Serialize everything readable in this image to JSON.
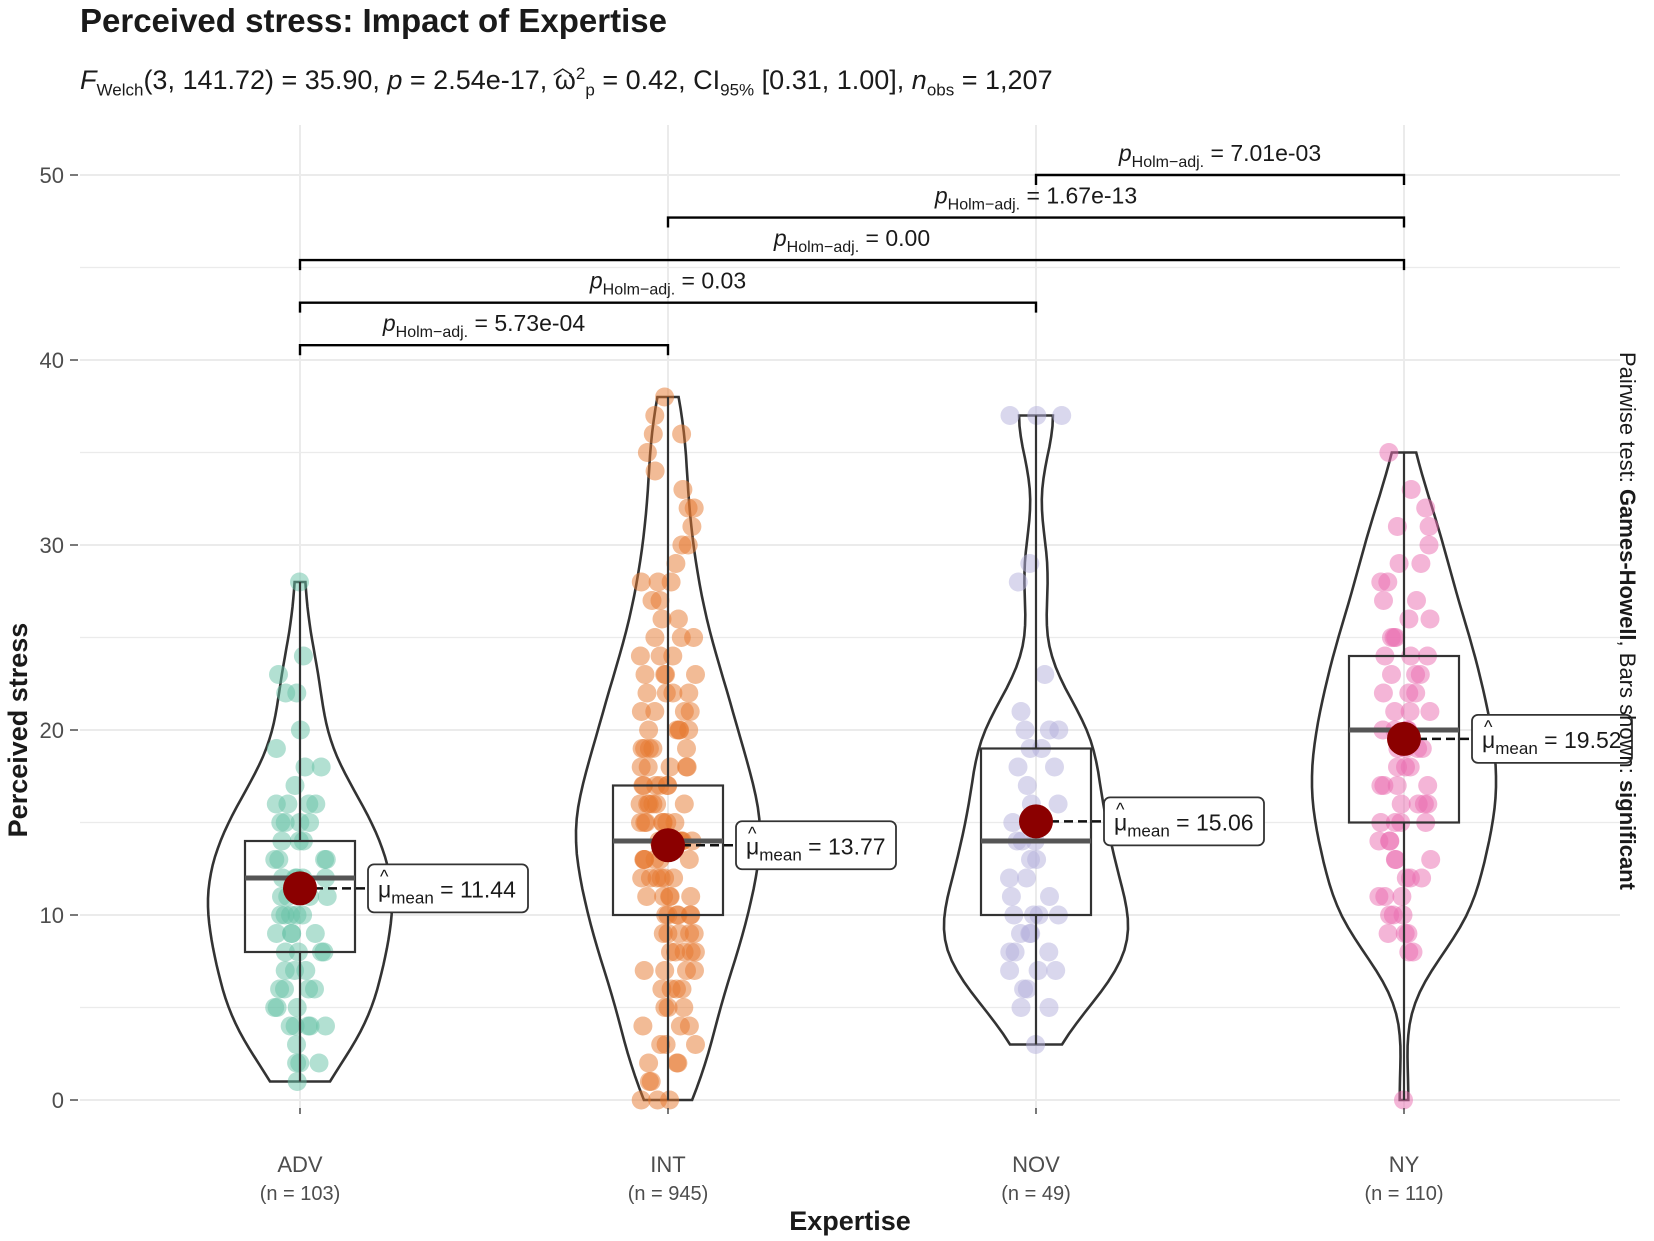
{
  "title": "Perceived stress: Impact of Expertise",
  "subtitle": {
    "stat_name": "F",
    "stat_sub": "Welch",
    "df": "(3, 141.72) = 35.90, ",
    "p_label": "p",
    "p_value": " = 2.54e-17, ",
    "effect_symbol": "ω",
    "effect_sup": "2",
    "effect_sub": "p",
    "effect_value": " = 0.42, CI",
    "ci_sub": "95%",
    "ci_value": " [0.31, 1.00], ",
    "n_label": "n",
    "n_sub": "obs",
    "n_value": " = 1,207"
  },
  "right_caption": {
    "prefix": "Pairwise test: ",
    "test": "Games-Howell",
    "middle": ", Bars shown: ",
    "shown": "significant"
  },
  "colors": {
    "ADV": "#66c2a5",
    "INT": "#e6772e",
    "NOV": "#b3b0dc",
    "NY": "#ea6bb0",
    "mean": "#8b0000",
    "grid": "#ebebeb",
    "outline": "#333333"
  },
  "chart_data": {
    "type": "violin-box-jitter",
    "xlabel": "Expertise",
    "ylabel": "Perceived stress",
    "ylim": [
      0,
      52
    ],
    "yticks": [
      0,
      10,
      20,
      30,
      40,
      50
    ],
    "groups": [
      {
        "name": "ADV",
        "n_label": "(n = 103)",
        "min": 1,
        "q1": 8,
        "median": 12,
        "q3": 14,
        "max": 28,
        "mean": 11.44,
        "mean_label": "= 11.44",
        "points": [
          28,
          24,
          23,
          22,
          22,
          20,
          19,
          18,
          18,
          17,
          16,
          16,
          16,
          16,
          15,
          15,
          15,
          15,
          14,
          14,
          14,
          13,
          13,
          13,
          13,
          12,
          12,
          12,
          12,
          12,
          11,
          11,
          11,
          11,
          10,
          10,
          10,
          10,
          10,
          9,
          9,
          9,
          9,
          8,
          8,
          8,
          8,
          7,
          7,
          7,
          6,
          6,
          6,
          6,
          5,
          5,
          5,
          4,
          4,
          4,
          4,
          4,
          3,
          2,
          2,
          2,
          1
        ]
      },
      {
        "name": "INT",
        "n_label": "(n = 945)",
        "min": 0,
        "q1": 10,
        "median": 14,
        "q3": 17,
        "max": 38,
        "mean": 13.77,
        "mean_label": "= 13.77",
        "points": [
          38,
          37,
          36,
          36,
          35,
          34,
          33,
          32,
          32,
          31,
          30,
          30,
          29,
          28,
          28,
          28,
          27,
          27,
          26,
          26,
          25,
          25,
          25,
          24,
          24,
          24,
          23,
          23,
          23,
          23,
          22,
          22,
          22,
          22,
          21,
          21,
          21,
          21,
          20,
          20,
          20,
          20,
          20,
          19,
          19,
          19,
          19,
          19,
          18,
          18,
          18,
          18,
          18,
          17,
          17,
          17,
          17,
          17,
          17,
          16,
          16,
          16,
          16,
          16,
          16,
          15,
          15,
          15,
          15,
          15,
          15,
          15,
          14,
          14,
          14,
          14,
          14,
          14,
          14,
          13,
          13,
          13,
          13,
          13,
          13,
          12,
          12,
          12,
          12,
          12,
          12,
          11,
          11,
          11,
          11,
          11,
          10,
          10,
          10,
          10,
          10,
          10,
          9,
          9,
          9,
          9,
          9,
          8,
          8,
          8,
          8,
          8,
          7,
          7,
          7,
          7,
          6,
          6,
          6,
          6,
          5,
          5,
          5,
          4,
          4,
          4,
          3,
          3,
          3,
          2,
          2,
          2,
          1,
          1,
          0,
          0,
          0
        ]
      },
      {
        "name": "NOV",
        "n_label": "(n = 49)",
        "min": 3,
        "q1": 10,
        "median": 14,
        "q3": 19,
        "max": 37,
        "mean": 15.06,
        "mean_label": "= 15.06",
        "points": [
          37,
          37,
          37,
          29,
          28,
          23,
          21,
          20,
          20,
          20,
          19,
          19,
          18,
          18,
          17,
          16,
          16,
          15,
          15,
          14,
          14,
          14,
          13,
          13,
          12,
          12,
          11,
          11,
          10,
          10,
          10,
          10,
          9,
          9,
          9,
          8,
          8,
          8,
          7,
          7,
          7,
          6,
          6,
          5,
          5,
          3
        ]
      },
      {
        "name": "NY",
        "n_label": "(n = 110)",
        "min": 0,
        "q1": 15,
        "median": 20,
        "q3": 24,
        "max": 35,
        "mean": 19.52,
        "mean_label": "= 19.52",
        "points": [
          35,
          33,
          32,
          31,
          31,
          30,
          29,
          29,
          28,
          28,
          27,
          27,
          26,
          26,
          25,
          25,
          25,
          24,
          24,
          24,
          23,
          23,
          23,
          22,
          22,
          22,
          21,
          21,
          21,
          20,
          20,
          20,
          20,
          19,
          19,
          19,
          19,
          18,
          18,
          18,
          17,
          17,
          17,
          17,
          16,
          16,
          16,
          16,
          15,
          15,
          15,
          15,
          14,
          14,
          14,
          13,
          13,
          13,
          12,
          12,
          12,
          11,
          11,
          11,
          10,
          10,
          10,
          9,
          9,
          9,
          8,
          8,
          0
        ]
      }
    ],
    "pairwise": [
      {
        "from": "NOV",
        "to": "NY",
        "y": 50,
        "label": "= 7.01e-03"
      },
      {
        "from": "INT",
        "to": "NY",
        "y": 47.7,
        "label": "= 1.67e-13"
      },
      {
        "from": "ADV",
        "to": "NY",
        "y": 45.4,
        "label": "= 0.00"
      },
      {
        "from": "ADV",
        "to": "NOV",
        "y": 43.1,
        "label": "= 0.03"
      },
      {
        "from": "ADV",
        "to": "INT",
        "y": 40.8,
        "label": "= 5.73e-04"
      }
    ],
    "p_prefix": "p",
    "p_sub": "Holm−adj.",
    "mean_symbol": "μ",
    "mean_sub": "mean"
  }
}
